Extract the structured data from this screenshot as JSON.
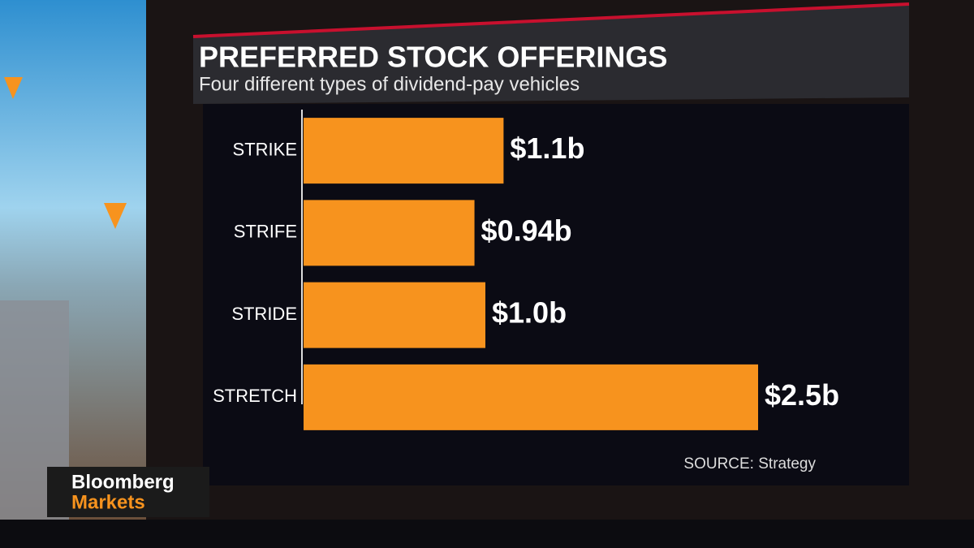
{
  "chart_data": {
    "type": "hbar",
    "title": "PREFERRED STOCK OFFERINGS",
    "subtitle": "Four different types of dividend-pay vehicles",
    "categories": [
      "STRIKE",
      "STRIFE",
      "STRIDE",
      "STRETCH"
    ],
    "values": [
      1.1,
      0.94,
      1.0,
      2.5
    ],
    "value_labels": [
      "$1.1b",
      "$0.94b",
      "$1.0b",
      "$2.5b"
    ],
    "color": "#f7931e",
    "source": "SOURCE: Strategy"
  },
  "branding": {
    "line1": "Bloomberg",
    "line2": "Markets"
  }
}
